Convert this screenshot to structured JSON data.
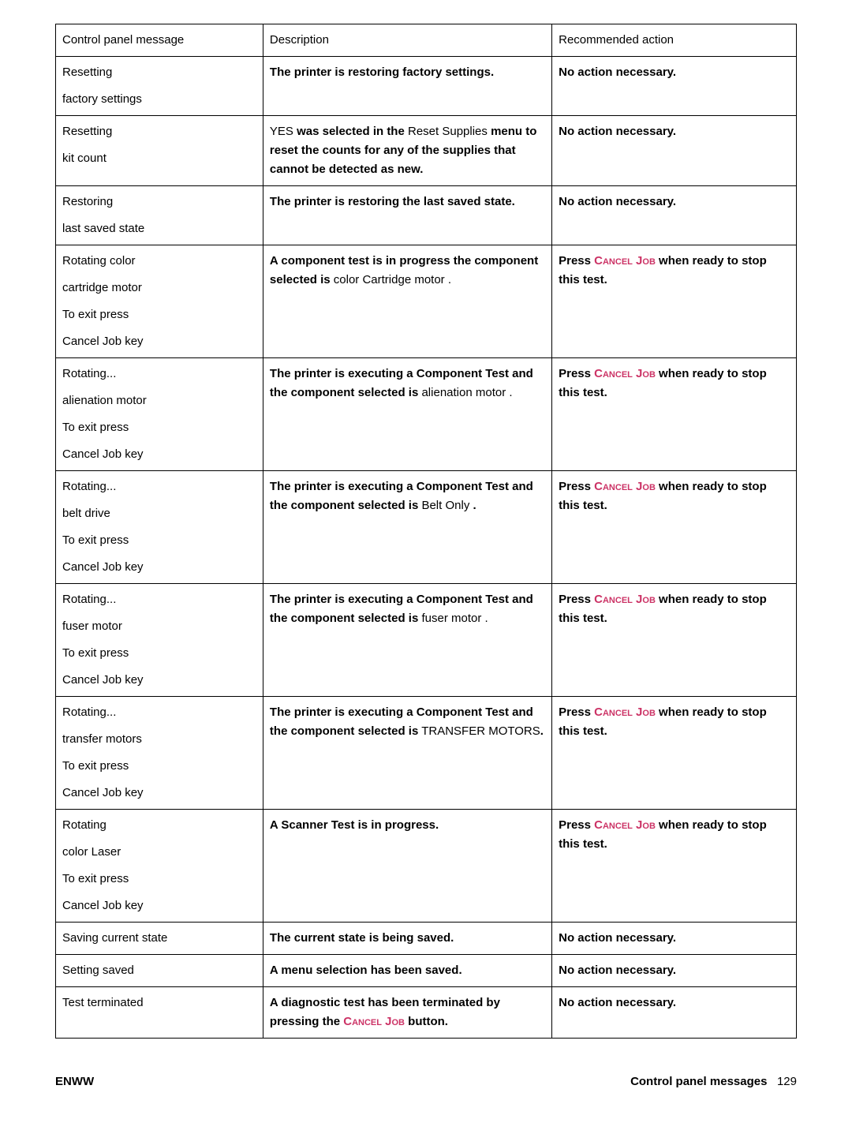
{
  "headers": {
    "col1": "Control panel message",
    "col2": "Description",
    "col3": "Recommended action"
  },
  "rows": [
    {
      "msg": [
        "Resetting",
        "factory settings"
      ],
      "desc": [
        {
          "t": "The printer is restoring factory settings.",
          "b": true
        }
      ],
      "rec": [
        {
          "t": "No action necessary.",
          "b": true
        }
      ]
    },
    {
      "msg": [
        "Resetting",
        "kit count"
      ],
      "desc": [
        {
          "t": "YES ",
          "b": false
        },
        {
          "t": "was selected in the",
          "b": true
        },
        {
          "t": " Reset Supplies ",
          "b": false
        },
        {
          "t": "menu to reset the counts for any of the supplies that cannot be detected as new.",
          "b": true
        }
      ],
      "rec": [
        {
          "t": "No action necessary.",
          "b": true
        }
      ]
    },
    {
      "msg": [
        "Restoring",
        "last saved state"
      ],
      "desc": [
        {
          "t": "The printer is restoring the last saved state.",
          "b": true
        }
      ],
      "rec": [
        {
          "t": "No action necessary.",
          "b": true
        }
      ]
    },
    {
      "msg": [
        "Rotating color",
        "cartridge motor",
        "To exit press",
        "Cancel Job key"
      ],
      "desc": [
        {
          "t": "A component test is in progress the component selected is",
          "b": true
        },
        {
          "t": " color Cartridge motor .",
          "b": false
        }
      ],
      "rec": [
        {
          "t": "Press ",
          "b": true
        },
        {
          "t": "Cancel Job",
          "cj": true
        },
        {
          "t": " when ready to stop this test.",
          "b": true
        }
      ]
    },
    {
      "msg": [
        "Rotating...",
        "alienation motor",
        "To exit press",
        "Cancel Job key"
      ],
      "desc": [
        {
          "t": "The printer is executing a Component Test and the component selected is",
          "b": true
        },
        {
          "t": " alienation motor .",
          "b": false
        }
      ],
      "rec": [
        {
          "t": "Press ",
          "b": true
        },
        {
          "t": "Cancel Job",
          "cj": true
        },
        {
          "t": " when ready to stop this test.",
          "b": true
        }
      ]
    },
    {
      "msg": [
        "Rotating...",
        "belt drive",
        "To exit press",
        "Cancel Job key"
      ],
      "desc": [
        {
          "t": "The printer is executing a Component Test and the component selected is",
          "b": true
        },
        {
          "t": " Belt Only ",
          "b": false
        },
        {
          "t": ".",
          "b": true
        }
      ],
      "rec": [
        {
          "t": "Press ",
          "b": true
        },
        {
          "t": "Cancel Job",
          "cj": true
        },
        {
          "t": " when ready to stop this test.",
          "b": true
        }
      ]
    },
    {
      "msg": [
        "Rotating...",
        "fuser motor",
        "To exit press",
        "Cancel Job key"
      ],
      "desc": [
        {
          "t": "The printer is executing a Component Test and the component selected is",
          "b": true
        },
        {
          "t": " fuser motor .",
          "b": false
        }
      ],
      "rec": [
        {
          "t": "Press ",
          "b": true
        },
        {
          "t": "Cancel Job",
          "cj": true
        },
        {
          "t": " when ready to stop this test.",
          "b": true
        }
      ]
    },
    {
      "msg": [
        "Rotating...",
        "transfer motors",
        "To exit press",
        "Cancel Job key"
      ],
      "desc": [
        {
          "t": "The printer is executing a Component Test and the component selected is",
          "b": true
        },
        {
          "t": " TRANSFER MOTORS",
          "b": false
        },
        {
          "t": ".",
          "b": true
        }
      ],
      "rec": [
        {
          "t": "Press ",
          "b": true
        },
        {
          "t": "Cancel Job",
          "cj": true
        },
        {
          "t": " when ready to stop this test.",
          "b": true
        }
      ]
    },
    {
      "msg": [
        "Rotating",
        "color Laser",
        "To exit press",
        "Cancel Job key"
      ],
      "desc": [
        {
          "t": "A Scanner Test is in progress.",
          "b": true
        }
      ],
      "rec": [
        {
          "t": "Press ",
          "b": true
        },
        {
          "t": "Cancel Job",
          "cj": true
        },
        {
          "t": " when ready to stop this test.",
          "b": true
        }
      ]
    },
    {
      "msg": [
        "Saving current state"
      ],
      "desc": [
        {
          "t": "The current state is being saved.",
          "b": true
        }
      ],
      "rec": [
        {
          "t": "No action necessary.",
          "b": true
        }
      ]
    },
    {
      "msg": [
        "Setting saved"
      ],
      "desc": [
        {
          "t": "A menu selection has been saved.",
          "b": true
        }
      ],
      "rec": [
        {
          "t": "No action necessary.",
          "b": true
        }
      ]
    },
    {
      "msg": [
        "Test terminated"
      ],
      "desc": [
        {
          "t": "A diagnostic test has been terminated by pressing the ",
          "b": true
        },
        {
          "t": "Cancel Job",
          "cj": true
        },
        {
          "t": " button.",
          "b": true
        }
      ],
      "rec": [
        {
          "t": "No action necessary.",
          "b": true
        }
      ]
    }
  ],
  "footer": {
    "left": "ENWW",
    "right_title": "Control panel messages",
    "right_page": "129"
  }
}
